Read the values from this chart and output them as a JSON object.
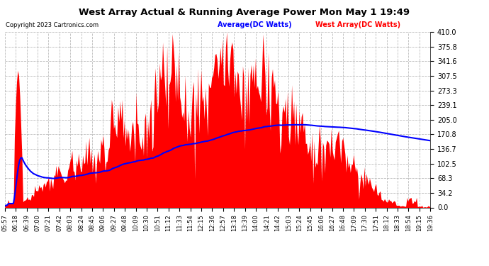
{
  "title": "West Array Actual & Running Average Power Mon May 1 19:49",
  "copyright": "Copyright 2023 Cartronics.com",
  "legend_avg": "Average(DC Watts)",
  "legend_west": "West Array(DC Watts)",
  "ylim": [
    0.0,
    410.0
  ],
  "yticks": [
    0.0,
    34.2,
    68.3,
    102.5,
    136.7,
    170.8,
    205.0,
    239.1,
    273.3,
    307.5,
    341.6,
    375.8,
    410.0
  ],
  "xtick_labels": [
    "05:57",
    "06:18",
    "06:39",
    "07:00",
    "07:21",
    "07:42",
    "08:03",
    "08:24",
    "08:45",
    "09:06",
    "09:27",
    "09:48",
    "10:09",
    "10:30",
    "10:51",
    "11:12",
    "11:33",
    "11:54",
    "12:15",
    "12:36",
    "12:57",
    "13:18",
    "13:39",
    "14:00",
    "14:21",
    "14:42",
    "15:03",
    "15:24",
    "15:45",
    "16:06",
    "16:27",
    "16:48",
    "17:09",
    "17:30",
    "17:51",
    "18:12",
    "18:33",
    "18:54",
    "19:15",
    "19:36"
  ],
  "background_color": "#ffffff",
  "plot_bg_color": "#ffffff",
  "grid_color": "#aaaaaa",
  "bar_color": "#ff0000",
  "line_color": "#0000ff",
  "title_color": "#000000",
  "copyright_color": "#000000",
  "legend_avg_color": "#0000ff",
  "legend_west_color": "#ff0000"
}
